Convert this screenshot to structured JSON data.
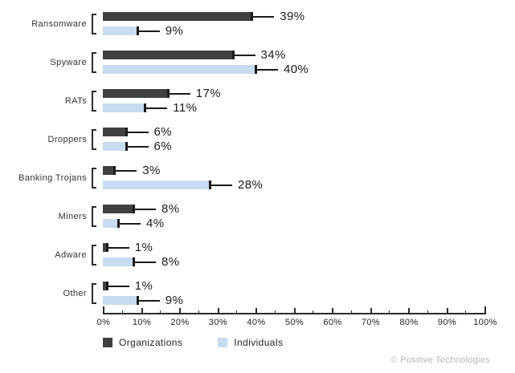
{
  "chart_data": {
    "type": "bar",
    "orientation": "horizontal",
    "title": "",
    "categories": [
      "Ransomware",
      "Spyware",
      "RATs",
      "Droppers",
      "Banking Trojans",
      "Miners",
      "Adware",
      "Other"
    ],
    "series": [
      {
        "name": "Organizations",
        "color": "#404042",
        "values": [
          39,
          34,
          17,
          6,
          3,
          8,
          1,
          1
        ]
      },
      {
        "name": "Individuals",
        "color": "#c7dcf1",
        "values": [
          9,
          40,
          11,
          6,
          28,
          4,
          8,
          9
        ]
      }
    ],
    "value_suffix": "%",
    "x_axis": {
      "min": 0,
      "max": 100,
      "major_step": 10,
      "minor_step": 5,
      "tick_labels": [
        "0%",
        "10%",
        "20%",
        "30%",
        "40%",
        "50%",
        "60%",
        "70%",
        "80%",
        "90%",
        "100%"
      ]
    },
    "legend_position": "bottom",
    "grid": false
  },
  "legend": {
    "items": [
      {
        "label": "Organizations",
        "color": "#404042"
      },
      {
        "label": "Individuals",
        "color": "#c7dcf1"
      }
    ]
  },
  "footer": {
    "credit": "© Positive Technologies"
  }
}
